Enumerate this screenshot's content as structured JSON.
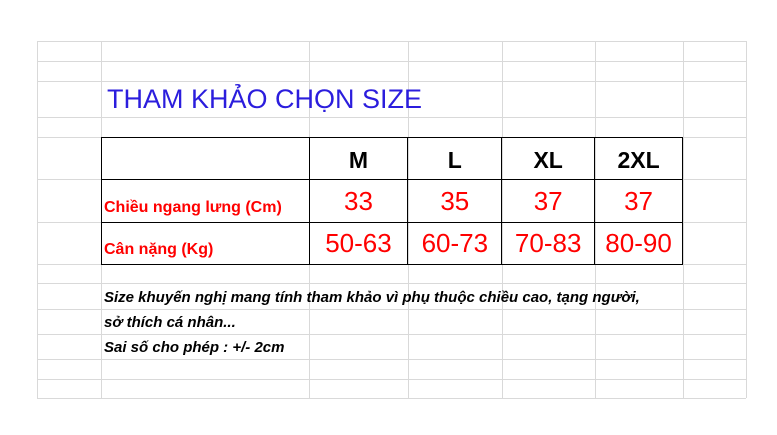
{
  "title": "THAM KHẢO CHỌN SIZE",
  "table": {
    "sizes": [
      "M",
      "L",
      "XL",
      "2XL"
    ],
    "rows": [
      {
        "label": "Chiều ngang lưng (Cm)",
        "values": [
          "33",
          "35",
          "37",
          "37"
        ]
      },
      {
        "label": "Cân nặng (Kg)",
        "values": [
          "50-63",
          "60-73",
          "70-83",
          "80-90"
        ]
      }
    ]
  },
  "notes": [
    "Size khuyến nghị mang tính tham khảo vì phụ thuộc chiều cao, tạng người,",
    "sở thích cá nhân...",
    "Sai số cho phép : +/- 2cm"
  ],
  "colors": {
    "title": "#2b1ddd",
    "values": "#ff0000",
    "grid": "#d9d9d9"
  }
}
